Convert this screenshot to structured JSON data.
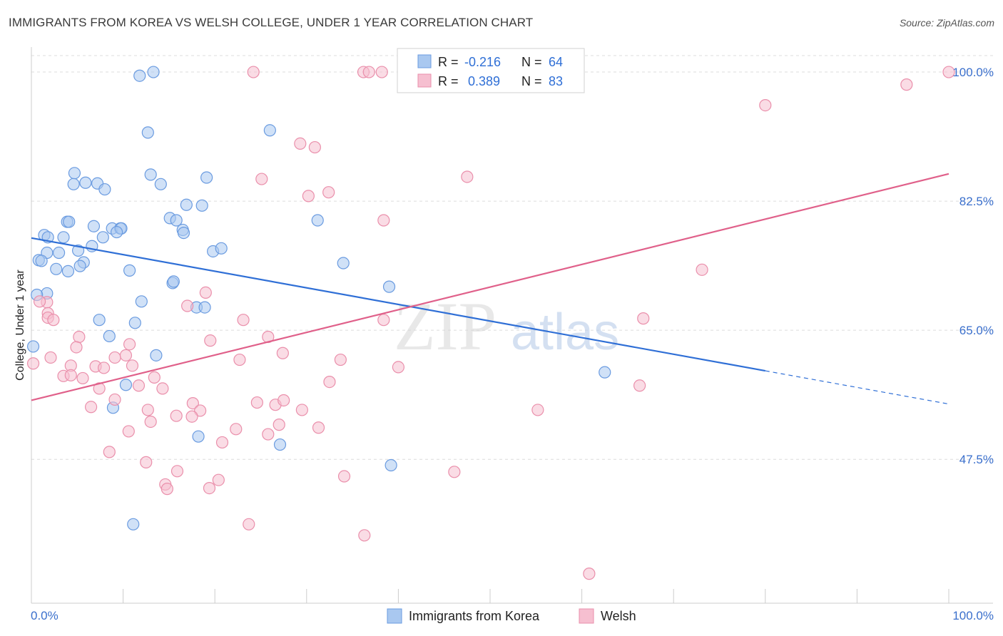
{
  "title": "IMMIGRANTS FROM KOREA VS WELSH COLLEGE, UNDER 1 YEAR CORRELATION CHART",
  "source": "Source: ZipAtlas.com",
  "watermark": {
    "part1": "ZIP",
    "part2": "atlas"
  },
  "colors": {
    "korea_fill": "#a9c8f0",
    "korea_stroke": "#6a9be0",
    "korea_line": "#2f6fd6",
    "welsh_fill": "#f6bfd0",
    "welsh_stroke": "#ea8fab",
    "welsh_line": "#e0608a",
    "grid": "#dcdcdc",
    "tick_text": "#3a6fcc"
  },
  "legend": {
    "row1": {
      "r_label": "R =",
      "r_value": "-0.216",
      "n_label": "N =",
      "n_value": "64"
    },
    "row2": {
      "r_label": "R =",
      "r_value": "0.389",
      "n_label": "N =",
      "n_value": "83"
    }
  },
  "bottom_legend": [
    "Immigrants from Korea",
    "Welsh"
  ],
  "chart_data": {
    "type": "scatter",
    "title": "IMMIGRANTS FROM KOREA VS WELSH COLLEGE, UNDER 1 YEAR CORRELATION CHART",
    "xlabel": "",
    "ylabel": "College, Under 1 year",
    "xlim": [
      0,
      100
    ],
    "ylim": [
      28,
      103
    ],
    "x_tick_labels": [
      "0.0%",
      "100.0%"
    ],
    "y_ticks": [
      47.5,
      65.0,
      82.5,
      100.0
    ],
    "y_tick_labels": [
      "47.5%",
      "65.0%",
      "82.5%",
      "100.0%"
    ],
    "grid": true,
    "legend_position": "top-center",
    "series": [
      {
        "name": "Immigrants from Korea",
        "r": -0.216,
        "n": 64,
        "trend": {
          "x0": 0,
          "y0": 77.5,
          "x1": 80,
          "y1": 59.5,
          "dash_to_x": 100,
          "dash_to_y": 55.0
        },
        "points": [
          [
            11.8,
            99.5
          ],
          [
            13.3,
            100.0
          ],
          [
            12.7,
            91.8
          ],
          [
            26.0,
            92.1
          ],
          [
            4.7,
            86.3
          ],
          [
            4.6,
            84.8
          ],
          [
            5.9,
            85.0
          ],
          [
            7.2,
            84.9
          ],
          [
            8.0,
            84.1
          ],
          [
            13.0,
            86.1
          ],
          [
            14.1,
            84.8
          ],
          [
            19.1,
            85.7
          ],
          [
            16.9,
            82.0
          ],
          [
            18.6,
            81.9
          ],
          [
            15.1,
            80.2
          ],
          [
            15.8,
            79.9
          ],
          [
            31.2,
            79.9
          ],
          [
            3.9,
            79.7
          ],
          [
            4.1,
            79.7
          ],
          [
            6.8,
            79.1
          ],
          [
            8.8,
            78.8
          ],
          [
            9.7,
            78.8
          ],
          [
            9.8,
            78.8
          ],
          [
            9.3,
            78.3
          ],
          [
            16.5,
            78.6
          ],
          [
            16.6,
            78.2
          ],
          [
            1.4,
            77.9
          ],
          [
            3.5,
            77.6
          ],
          [
            1.8,
            77.6
          ],
          [
            7.8,
            77.6
          ],
          [
            6.6,
            76.4
          ],
          [
            1.7,
            75.5
          ],
          [
            3.0,
            75.5
          ],
          [
            5.1,
            75.8
          ],
          [
            19.8,
            75.7
          ],
          [
            20.7,
            76.1
          ],
          [
            0.8,
            74.5
          ],
          [
            1.1,
            74.4
          ],
          [
            5.7,
            74.2
          ],
          [
            5.3,
            73.7
          ],
          [
            34.0,
            74.1
          ],
          [
            2.7,
            73.3
          ],
          [
            4.0,
            73.0
          ],
          [
            10.7,
            73.1
          ],
          [
            15.4,
            71.4
          ],
          [
            15.5,
            71.6
          ],
          [
            39.0,
            70.9
          ],
          [
            1.7,
            70.0
          ],
          [
            0.6,
            69.8
          ],
          [
            12.0,
            68.9
          ],
          [
            18.0,
            68.1
          ],
          [
            18.9,
            68.1
          ],
          [
            7.4,
            66.4
          ],
          [
            11.3,
            66.0
          ],
          [
            8.5,
            64.2
          ],
          [
            13.6,
            61.6
          ],
          [
            0.2,
            62.8
          ],
          [
            62.5,
            59.3
          ],
          [
            10.3,
            57.6
          ],
          [
            8.9,
            54.5
          ],
          [
            18.2,
            50.6
          ],
          [
            27.1,
            49.5
          ],
          [
            39.2,
            46.7
          ],
          [
            11.1,
            38.7
          ]
        ]
      },
      {
        "name": "Welsh",
        "r": 0.389,
        "n": 83,
        "trend": {
          "x0": 0,
          "y0": 55.5,
          "x1": 100,
          "y1": 86.2
        },
        "points": [
          [
            24.2,
            100.0
          ],
          [
            36.2,
            100.0
          ],
          [
            36.8,
            100.0
          ],
          [
            38.2,
            100.0
          ],
          [
            40.8,
            100.0
          ],
          [
            100.0,
            100.0
          ],
          [
            95.4,
            98.3
          ],
          [
            80.0,
            95.5
          ],
          [
            29.3,
            90.3
          ],
          [
            30.9,
            89.8
          ],
          [
            47.5,
            85.8
          ],
          [
            25.1,
            85.5
          ],
          [
            32.4,
            83.7
          ],
          [
            30.2,
            83.2
          ],
          [
            38.4,
            79.9
          ],
          [
            73.1,
            73.2
          ],
          [
            19.0,
            70.1
          ],
          [
            17.0,
            68.3
          ],
          [
            1.7,
            68.8
          ],
          [
            1.8,
            67.3
          ],
          [
            1.8,
            66.7
          ],
          [
            2.4,
            66.4
          ],
          [
            23.1,
            66.4
          ],
          [
            38.4,
            66.4
          ],
          [
            66.7,
            66.6
          ],
          [
            5.2,
            64.1
          ],
          [
            25.8,
            64.1
          ],
          [
            4.9,
            62.7
          ],
          [
            19.5,
            63.6
          ],
          [
            10.7,
            63.1
          ],
          [
            27.4,
            61.9
          ],
          [
            2.1,
            61.3
          ],
          [
            9.1,
            61.3
          ],
          [
            10.3,
            61.6
          ],
          [
            22.7,
            61.0
          ],
          [
            33.7,
            61.0
          ],
          [
            4.3,
            60.2
          ],
          [
            7.0,
            60.1
          ],
          [
            7.9,
            59.9
          ],
          [
            11.0,
            60.2
          ],
          [
            40.0,
            60.0
          ],
          [
            3.5,
            58.8
          ],
          [
            4.3,
            58.9
          ],
          [
            5.6,
            58.5
          ],
          [
            13.4,
            58.6
          ],
          [
            32.5,
            58.0
          ],
          [
            66.3,
            57.5
          ],
          [
            7.4,
            57.1
          ],
          [
            11.7,
            57.5
          ],
          [
            14.3,
            57.1
          ],
          [
            9.1,
            55.6
          ],
          [
            24.6,
            55.2
          ],
          [
            26.6,
            54.9
          ],
          [
            27.5,
            55.5
          ],
          [
            17.6,
            55.1
          ],
          [
            18.4,
            54.1
          ],
          [
            6.5,
            54.6
          ],
          [
            12.7,
            54.2
          ],
          [
            29.5,
            54.2
          ],
          [
            55.2,
            54.2
          ],
          [
            15.8,
            53.4
          ],
          [
            17.5,
            53.3
          ],
          [
            13.0,
            52.6
          ],
          [
            27.0,
            52.2
          ],
          [
            31.3,
            51.8
          ],
          [
            22.3,
            51.6
          ],
          [
            10.6,
            51.3
          ],
          [
            25.8,
            50.9
          ],
          [
            20.8,
            49.8
          ],
          [
            8.5,
            48.5
          ],
          [
            12.5,
            47.1
          ],
          [
            46.1,
            45.8
          ],
          [
            15.9,
            45.9
          ],
          [
            34.1,
            45.2
          ],
          [
            20.4,
            44.7
          ],
          [
            14.6,
            44.1
          ],
          [
            14.8,
            43.5
          ],
          [
            19.4,
            43.6
          ],
          [
            23.7,
            38.7
          ],
          [
            36.3,
            37.2
          ],
          [
            60.8,
            32.0
          ],
          [
            0.2,
            60.5
          ],
          [
            0.9,
            68.9
          ]
        ]
      }
    ]
  }
}
